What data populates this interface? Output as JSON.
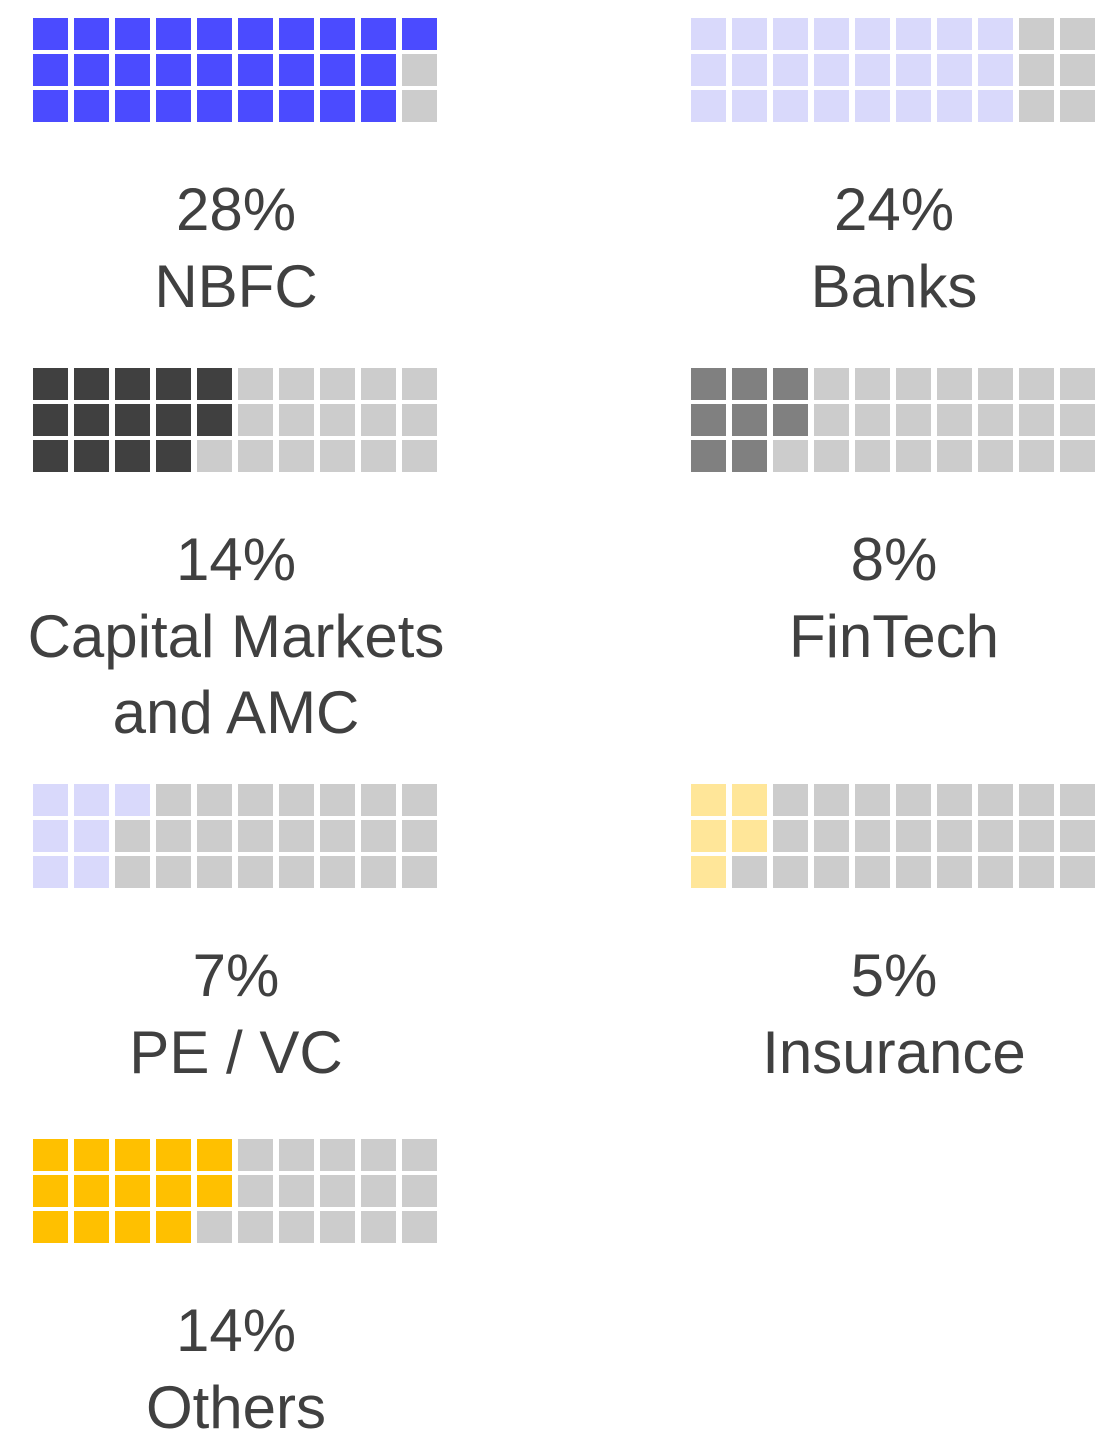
{
  "chart_data": {
    "type": "waffle",
    "categories": [
      "NBFC",
      "Banks",
      "Capital Markets and AMC",
      "FinTech",
      "PE / VC",
      "Insurance",
      "Others"
    ],
    "values": [
      28,
      24,
      14,
      8,
      7,
      5,
      14
    ],
    "value_labels": [
      "28%",
      "24%",
      "14%",
      "8%",
      "7%",
      "5%",
      "14%"
    ],
    "colors": [
      "#4b4bff",
      "#d9d9fb",
      "#404040",
      "#808080",
      "#d9d9fb",
      "#ffe699",
      "#ffc000"
    ],
    "empty_color": "#cccccc"
  }
}
